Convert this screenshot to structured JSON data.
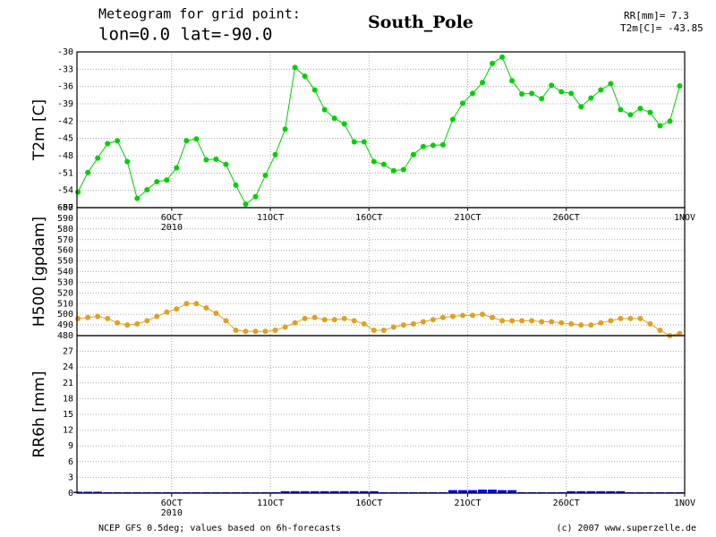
{
  "header": {
    "line1": "Meteogram for grid point:",
    "line2": "lon=0.0 lat=-90.0",
    "station": "South_Pole",
    "info1": "RR[mm]= 7.3",
    "info2": "T2m[C]= -43.85"
  },
  "footer": {
    "left": "NCEP GFS 0.5deg; values based on 6h-forecasts",
    "right": "(c) 2007 www.superzelle.de"
  },
  "chart_data": [
    {
      "type": "line",
      "y_label": "T2m [C]",
      "color": "#00d000",
      "grid": true,
      "xlim": [
        1.2,
        32
      ],
      "xticks": [
        {
          "value": 6,
          "label": "6OCT"
        },
        {
          "value": 11,
          "label": "11OCT"
        },
        {
          "value": 16,
          "label": "16OCT"
        },
        {
          "value": 21,
          "label": "21OCT"
        },
        {
          "value": 26,
          "label": "26OCT"
        },
        {
          "value": 32,
          "label": "1NOV"
        }
      ],
      "x_sublabel": "2010",
      "ylim": [
        -57,
        -30
      ],
      "yticks": [
        -30,
        -33,
        -36,
        -39,
        -42,
        -45,
        -48,
        -51,
        -54,
        -57
      ],
      "x": [
        1.25,
        1.75,
        2.25,
        2.75,
        3.25,
        3.75,
        4.25,
        4.75,
        5.25,
        5.75,
        6.25,
        6.75,
        7.25,
        7.75,
        8.25,
        8.75,
        9.25,
        9.75,
        10.25,
        10.75,
        11.25,
        11.75,
        12.25,
        12.75,
        13.25,
        13.75,
        14.25,
        14.75,
        15.25,
        15.75,
        16.25,
        16.75,
        17.25,
        17.75,
        18.25,
        18.75,
        19.25,
        19.75,
        20.25,
        20.75,
        21.25,
        21.75,
        22.25,
        22.75,
        23.25,
        23.75,
        24.25,
        24.75,
        25.25,
        25.75,
        26.25,
        26.75,
        27.25,
        27.75,
        28.25,
        28.75,
        29.25,
        29.75,
        30.25,
        30.75,
        31.25,
        31.75
      ],
      "values": [
        -54.3,
        -50.9,
        -48.4,
        -45.9,
        -45.4,
        -49.0,
        -55.4,
        -53.9,
        -52.5,
        -52.2,
        -50.1,
        -45.4,
        -45.1,
        -48.7,
        -48.6,
        -49.5,
        -53.1,
        -56.4,
        -55.1,
        -51.4,
        -47.8,
        -43.4,
        -32.7,
        -34.2,
        -36.6,
        -40.0,
        -41.5,
        -42.5,
        -45.6,
        -45.6,
        -49.0,
        -49.5,
        -50.6,
        -50.4,
        -47.8,
        -46.4,
        -46.2,
        -46.1,
        -41.7,
        -38.9,
        -37.2,
        -35.3,
        -32.0,
        -30.9,
        -35.0,
        -37.3,
        -37.2,
        -38.1,
        -35.8,
        -36.9,
        -37.2,
        -39.5,
        -38.0,
        -36.6,
        -35.5,
        -40.0,
        -40.9,
        -39.8,
        -40.5,
        -42.8,
        -42.0,
        -35.9
      ]
    },
    {
      "type": "line",
      "y_label": "H500 [gpdam]",
      "color": "#e0a020",
      "grid": true,
      "ylim": [
        480,
        600
      ],
      "yticks": [
        480,
        490,
        500,
        510,
        520,
        530,
        540,
        550,
        560,
        570,
        580,
        590,
        600
      ],
      "values": [
        496,
        497,
        498,
        496,
        492,
        490,
        491,
        494,
        498,
        502,
        505,
        510,
        510,
        506,
        501,
        494,
        485,
        484,
        484,
        484,
        485,
        488,
        492,
        496,
        497,
        495,
        495,
        496,
        494,
        491,
        485,
        485,
        488,
        490,
        491,
        493,
        495,
        497,
        498,
        499,
        499,
        500,
        497,
        494,
        494,
        494,
        494,
        493,
        493,
        492,
        491,
        490,
        490,
        492,
        494,
        496,
        496,
        496,
        491,
        485,
        480,
        482
      ]
    },
    {
      "type": "bar",
      "y_label": "RR6h [mm]",
      "color": "#0000ff",
      "grid": true,
      "xticks": [
        {
          "value": 6,
          "label": "6OCT"
        },
        {
          "value": 11,
          "label": "11OCT"
        },
        {
          "value": 16,
          "label": "16OCT"
        },
        {
          "value": 21,
          "label": "21OCT"
        },
        {
          "value": 26,
          "label": "26OCT"
        },
        {
          "value": 32,
          "label": "1NOV"
        }
      ],
      "x_sublabel": "2010",
      "ylim": [
        0,
        30
      ],
      "yticks": [
        0,
        3,
        6,
        9,
        12,
        15,
        18,
        21,
        24,
        27
      ],
      "values": [
        0.1,
        0.1,
        0.1,
        0,
        0,
        0,
        0,
        0,
        0,
        0,
        0,
        0,
        0,
        0,
        0,
        0,
        0,
        0,
        0,
        0,
        0,
        0.2,
        0.2,
        0.2,
        0.2,
        0.2,
        0.2,
        0.2,
        0.2,
        0.2,
        0.2,
        0,
        0,
        0,
        0,
        0,
        0,
        0,
        0.4,
        0.4,
        0.4,
        0.5,
        0.5,
        0.4,
        0.4,
        0,
        0,
        0,
        0,
        0,
        0.2,
        0.2,
        0.2,
        0.2,
        0.2,
        0.2,
        0,
        0,
        0,
        0,
        0,
        0
      ]
    }
  ]
}
